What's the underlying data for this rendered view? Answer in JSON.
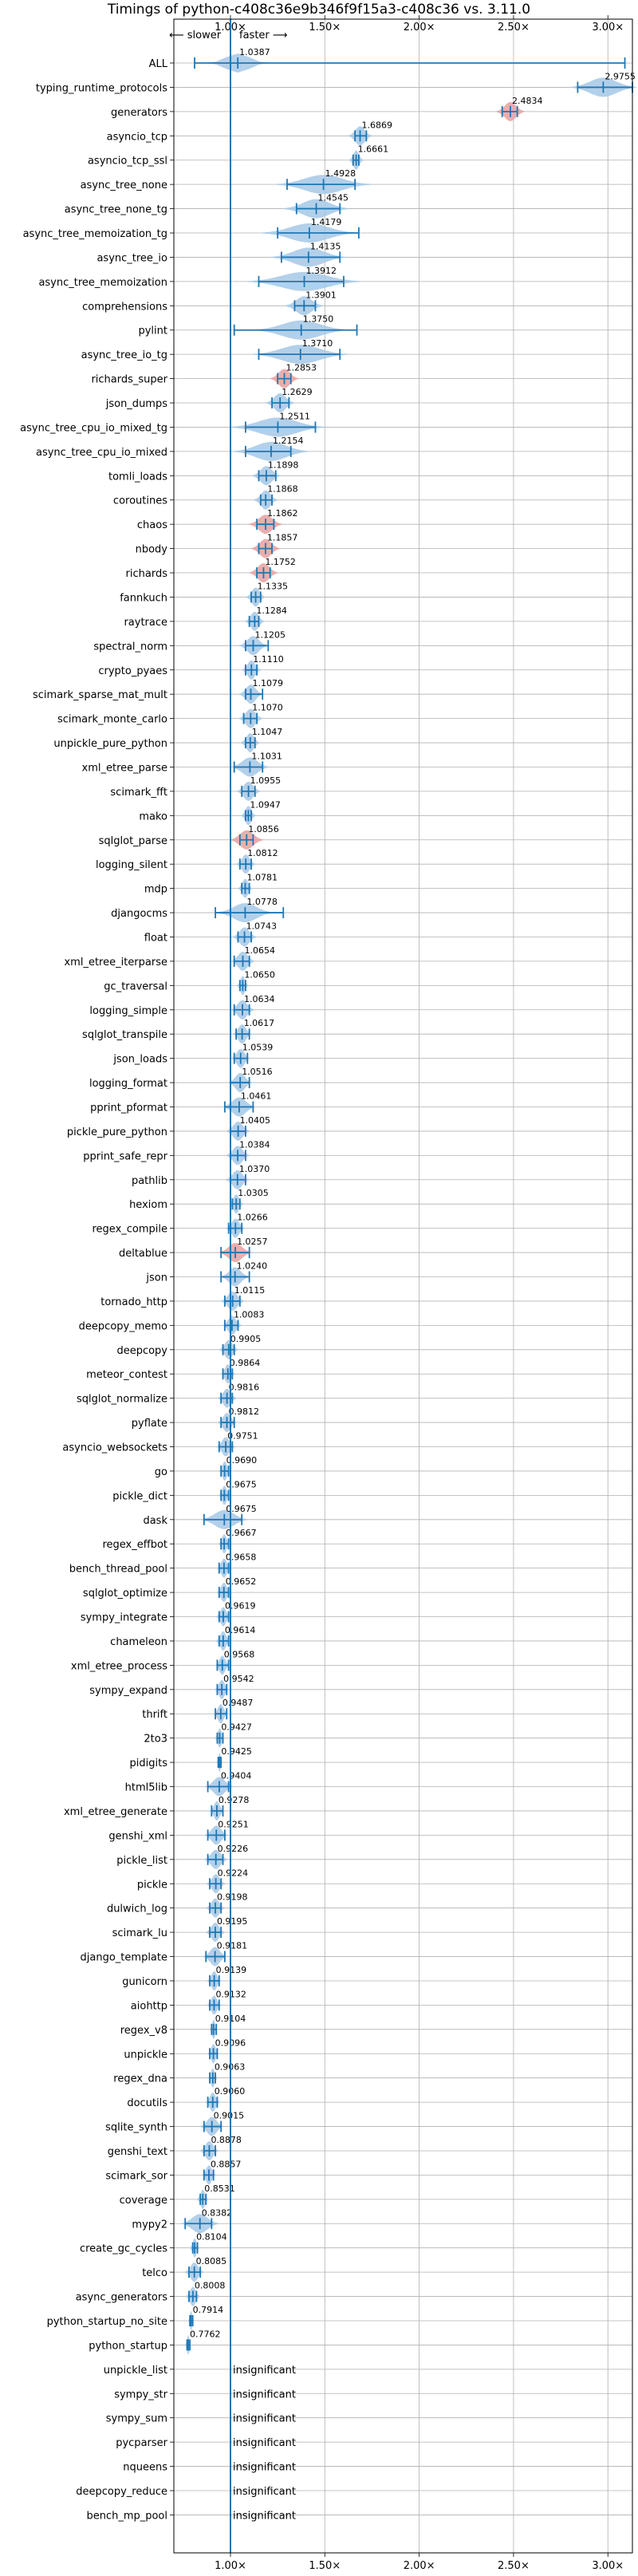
{
  "chart_data": {
    "type": "violin",
    "title": "Timings of python-c408c36e9b346f9f15a3-c408c36 vs. 3.11.0",
    "direction_labels": {
      "slower": "⟵ slower",
      "faster": "faster ⟶"
    },
    "xlim": [
      0.7,
      3.13
    ],
    "xticks": [
      1.0,
      1.5,
      2.0,
      2.5,
      3.0
    ],
    "xtick_labels": [
      "1.00×",
      "1.50×",
      "2.00×",
      "2.50×",
      "3.00×"
    ],
    "reference_line": 1.0,
    "grid": true,
    "benchmarks": [
      {
        "name": "ALL",
        "label": "1.0387",
        "value": 1.0387,
        "min": 0.81,
        "max": 3.09,
        "spread": 0.06,
        "flag": "none"
      },
      {
        "name": "typing_runtime_protocols",
        "label": "2.9755",
        "value": 2.9755,
        "min": 2.84,
        "max": 3.13,
        "spread": 0.07,
        "flag": "none"
      },
      {
        "name": "generators",
        "label": "2.4834",
        "value": 2.4834,
        "min": 2.44,
        "max": 2.52,
        "spread": 0.03,
        "flag": "red"
      },
      {
        "name": "asyncio_tcp",
        "label": "1.6869",
        "value": 1.6869,
        "min": 1.66,
        "max": 1.72,
        "spread": 0.025,
        "flag": "none"
      },
      {
        "name": "asyncio_tcp_ssl",
        "label": "1.6661",
        "value": 1.6661,
        "min": 1.65,
        "max": 1.68,
        "spread": 0.015,
        "flag": "none"
      },
      {
        "name": "async_tree_none",
        "label": "1.4928",
        "value": 1.4928,
        "min": 1.3,
        "max": 1.66,
        "spread": 0.1,
        "flag": "none"
      },
      {
        "name": "async_tree_none_tg",
        "label": "1.4545",
        "value": 1.4545,
        "min": 1.35,
        "max": 1.58,
        "spread": 0.07,
        "flag": "none"
      },
      {
        "name": "async_tree_memoization_tg",
        "label": "1.4179",
        "value": 1.4179,
        "min": 1.25,
        "max": 1.68,
        "spread": 0.1,
        "flag": "none"
      },
      {
        "name": "async_tree_io",
        "label": "1.4135",
        "value": 1.4135,
        "min": 1.27,
        "max": 1.58,
        "spread": 0.08,
        "flag": "none"
      },
      {
        "name": "async_tree_memoization",
        "label": "1.3912",
        "value": 1.3912,
        "min": 1.15,
        "max": 1.6,
        "spread": 0.12,
        "flag": "none"
      },
      {
        "name": "comprehensions",
        "label": "1.3901",
        "value": 1.3901,
        "min": 1.34,
        "max": 1.45,
        "spread": 0.04,
        "flag": "none"
      },
      {
        "name": "pylint",
        "label": "1.3750",
        "value": 1.375,
        "min": 1.02,
        "max": 1.67,
        "spread": 0.1,
        "flag": "none"
      },
      {
        "name": "async_tree_io_tg",
        "label": "1.3710",
        "value": 1.371,
        "min": 1.15,
        "max": 1.58,
        "spread": 0.1,
        "flag": "none"
      },
      {
        "name": "richards_super",
        "label": "1.2853",
        "value": 1.2853,
        "min": 1.25,
        "max": 1.32,
        "spread": 0.03,
        "flag": "red"
      },
      {
        "name": "json_dumps",
        "label": "1.2629",
        "value": 1.2629,
        "min": 1.22,
        "max": 1.31,
        "spread": 0.03,
        "flag": "none"
      },
      {
        "name": "async_tree_cpu_io_mixed_tg",
        "label": "1.2511",
        "value": 1.2511,
        "min": 1.08,
        "max": 1.45,
        "spread": 0.1,
        "flag": "none"
      },
      {
        "name": "async_tree_cpu_io_mixed",
        "label": "1.2154",
        "value": 1.2154,
        "min": 1.08,
        "max": 1.32,
        "spread": 0.08,
        "flag": "none"
      },
      {
        "name": "tomli_loads",
        "label": "1.1898",
        "value": 1.1898,
        "min": 1.15,
        "max": 1.24,
        "spread": 0.03,
        "flag": "none"
      },
      {
        "name": "coroutines",
        "label": "1.1868",
        "value": 1.1868,
        "min": 1.16,
        "max": 1.22,
        "spread": 0.025,
        "flag": "none"
      },
      {
        "name": "chaos",
        "label": "1.1862",
        "value": 1.1862,
        "min": 1.14,
        "max": 1.23,
        "spread": 0.035,
        "flag": "red"
      },
      {
        "name": "nbody",
        "label": "1.1857",
        "value": 1.1857,
        "min": 1.15,
        "max": 1.22,
        "spread": 0.03,
        "flag": "red"
      },
      {
        "name": "richards",
        "label": "1.1752",
        "value": 1.1752,
        "min": 1.14,
        "max": 1.21,
        "spread": 0.03,
        "flag": "red"
      },
      {
        "name": "fannkuch",
        "label": "1.1335",
        "value": 1.1335,
        "min": 1.11,
        "max": 1.16,
        "spread": 0.02,
        "flag": "none"
      },
      {
        "name": "raytrace",
        "label": "1.1284",
        "value": 1.1284,
        "min": 1.1,
        "max": 1.15,
        "spread": 0.02,
        "flag": "none"
      },
      {
        "name": "spectral_norm",
        "label": "1.1205",
        "value": 1.1205,
        "min": 1.08,
        "max": 1.2,
        "spread": 0.03,
        "flag": "none"
      },
      {
        "name": "crypto_pyaes",
        "label": "1.1110",
        "value": 1.111,
        "min": 1.08,
        "max": 1.14,
        "spread": 0.02,
        "flag": "none"
      },
      {
        "name": "scimark_sparse_mat_mult",
        "label": "1.1079",
        "value": 1.1079,
        "min": 1.08,
        "max": 1.17,
        "spread": 0.025,
        "flag": "none"
      },
      {
        "name": "scimark_monte_carlo",
        "label": "1.1070",
        "value": 1.107,
        "min": 1.07,
        "max": 1.14,
        "spread": 0.025,
        "flag": "none"
      },
      {
        "name": "unpickle_pure_python",
        "label": "1.1047",
        "value": 1.1047,
        "min": 1.08,
        "max": 1.13,
        "spread": 0.02,
        "flag": "none"
      },
      {
        "name": "xml_etree_parse",
        "label": "1.1031",
        "value": 1.1031,
        "min": 1.02,
        "max": 1.17,
        "spread": 0.04,
        "flag": "none"
      },
      {
        "name": "scimark_fft",
        "label": "1.0955",
        "value": 1.0955,
        "min": 1.06,
        "max": 1.13,
        "spread": 0.025,
        "flag": "none"
      },
      {
        "name": "mako",
        "label": "1.0947",
        "value": 1.0947,
        "min": 1.08,
        "max": 1.11,
        "spread": 0.015,
        "flag": "none"
      },
      {
        "name": "sqlglot_parse",
        "label": "1.0856",
        "value": 1.0856,
        "min": 1.05,
        "max": 1.12,
        "spread": 0.035,
        "flag": "red"
      },
      {
        "name": "logging_silent",
        "label": "1.0812",
        "value": 1.0812,
        "min": 1.05,
        "max": 1.11,
        "spread": 0.02,
        "flag": "none"
      },
      {
        "name": "mdp",
        "label": "1.0781",
        "value": 1.0781,
        "min": 1.06,
        "max": 1.1,
        "spread": 0.015,
        "flag": "none"
      },
      {
        "name": "djangocms",
        "label": "1.0778",
        "value": 1.0778,
        "min": 0.92,
        "max": 1.28,
        "spread": 0.06,
        "flag": "none"
      },
      {
        "name": "float",
        "label": "1.0743",
        "value": 1.0743,
        "min": 1.04,
        "max": 1.11,
        "spread": 0.025,
        "flag": "none"
      },
      {
        "name": "xml_etree_iterparse",
        "label": "1.0654",
        "value": 1.0654,
        "min": 1.02,
        "max": 1.1,
        "spread": 0.025,
        "flag": "none"
      },
      {
        "name": "gc_traversal",
        "label": "1.0650",
        "value": 1.065,
        "min": 1.05,
        "max": 1.08,
        "spread": 0.012,
        "flag": "none"
      },
      {
        "name": "logging_simple",
        "label": "1.0634",
        "value": 1.0634,
        "min": 1.02,
        "max": 1.1,
        "spread": 0.025,
        "flag": "none"
      },
      {
        "name": "sqlglot_transpile",
        "label": "1.0617",
        "value": 1.0617,
        "min": 1.03,
        "max": 1.1,
        "spread": 0.02,
        "flag": "none"
      },
      {
        "name": "json_loads",
        "label": "1.0539",
        "value": 1.0539,
        "min": 1.02,
        "max": 1.09,
        "spread": 0.02,
        "flag": "none"
      },
      {
        "name": "logging_format",
        "label": "1.0516",
        "value": 1.0516,
        "min": 1.0,
        "max": 1.1,
        "spread": 0.025,
        "flag": "none"
      },
      {
        "name": "pprint_pformat",
        "label": "1.0461",
        "value": 1.0461,
        "min": 0.97,
        "max": 1.12,
        "spread": 0.035,
        "flag": "none"
      },
      {
        "name": "pickle_pure_python",
        "label": "1.0405",
        "value": 1.0405,
        "min": 1.0,
        "max": 1.08,
        "spread": 0.025,
        "flag": "none"
      },
      {
        "name": "pprint_safe_repr",
        "label": "1.0384",
        "value": 1.0384,
        "min": 1.0,
        "max": 1.08,
        "spread": 0.025,
        "flag": "none"
      },
      {
        "name": "pathlib",
        "label": "1.0370",
        "value": 1.037,
        "min": 1.0,
        "max": 1.08,
        "spread": 0.025,
        "flag": "none"
      },
      {
        "name": "hexiom",
        "label": "1.0305",
        "value": 1.0305,
        "min": 1.01,
        "max": 1.05,
        "spread": 0.015,
        "flag": "none"
      },
      {
        "name": "regex_compile",
        "label": "1.0266",
        "value": 1.0266,
        "min": 0.99,
        "max": 1.06,
        "spread": 0.02,
        "flag": "none"
      },
      {
        "name": "deltablue",
        "label": "1.0257",
        "value": 1.0257,
        "min": 0.95,
        "max": 1.1,
        "spread": 0.035,
        "flag": "red"
      },
      {
        "name": "json",
        "label": "1.0240",
        "value": 1.024,
        "min": 0.95,
        "max": 1.1,
        "spread": 0.03,
        "flag": "none"
      },
      {
        "name": "tornado_http",
        "label": "1.0115",
        "value": 1.0115,
        "min": 0.97,
        "max": 1.05,
        "spread": 0.025,
        "flag": "none"
      },
      {
        "name": "deepcopy_memo",
        "label": "1.0083",
        "value": 1.0083,
        "min": 0.97,
        "max": 1.04,
        "spread": 0.02,
        "flag": "none"
      },
      {
        "name": "deepcopy",
        "label": "0.9905",
        "value": 0.9905,
        "min": 0.96,
        "max": 1.02,
        "spread": 0.02,
        "flag": "none"
      },
      {
        "name": "meteor_contest",
        "label": "0.9864",
        "value": 0.9864,
        "min": 0.96,
        "max": 1.01,
        "spread": 0.015,
        "flag": "none"
      },
      {
        "name": "sqlglot_normalize",
        "label": "0.9816",
        "value": 0.9816,
        "min": 0.95,
        "max": 1.01,
        "spread": 0.02,
        "flag": "none"
      },
      {
        "name": "pyflate",
        "label": "0.9812",
        "value": 0.9812,
        "min": 0.95,
        "max": 1.02,
        "spread": 0.02,
        "flag": "none"
      },
      {
        "name": "asyncio_websockets",
        "label": "0.9751",
        "value": 0.9751,
        "min": 0.94,
        "max": 1.01,
        "spread": 0.02,
        "flag": "none"
      },
      {
        "name": "go",
        "label": "0.9690",
        "value": 0.969,
        "min": 0.95,
        "max": 0.99,
        "spread": 0.012,
        "flag": "none"
      },
      {
        "name": "pickle_dict",
        "label": "0.9675",
        "value": 0.9675,
        "min": 0.95,
        "max": 0.99,
        "spread": 0.012,
        "flag": "none"
      },
      {
        "name": "dask",
        "label": "0.9675",
        "value": 0.9675,
        "min": 0.86,
        "max": 1.06,
        "spread": 0.05,
        "flag": "none"
      },
      {
        "name": "regex_effbot",
        "label": "0.9667",
        "value": 0.9667,
        "min": 0.95,
        "max": 0.99,
        "spread": 0.012,
        "flag": "none"
      },
      {
        "name": "bench_thread_pool",
        "label": "0.9658",
        "value": 0.9658,
        "min": 0.94,
        "max": 0.99,
        "spread": 0.015,
        "flag": "none"
      },
      {
        "name": "sqlglot_optimize",
        "label": "0.9652",
        "value": 0.9652,
        "min": 0.94,
        "max": 0.99,
        "spread": 0.015,
        "flag": "none"
      },
      {
        "name": "sympy_integrate",
        "label": "0.9619",
        "value": 0.9619,
        "min": 0.94,
        "max": 0.99,
        "spread": 0.015,
        "flag": "none"
      },
      {
        "name": "chameleon",
        "label": "0.9614",
        "value": 0.9614,
        "min": 0.94,
        "max": 0.99,
        "spread": 0.015,
        "flag": "none"
      },
      {
        "name": "xml_etree_process",
        "label": "0.9568",
        "value": 0.9568,
        "min": 0.93,
        "max": 0.99,
        "spread": 0.015,
        "flag": "none"
      },
      {
        "name": "sympy_expand",
        "label": "0.9542",
        "value": 0.9542,
        "min": 0.93,
        "max": 0.98,
        "spread": 0.015,
        "flag": "none"
      },
      {
        "name": "thrift",
        "label": "0.9487",
        "value": 0.9487,
        "min": 0.92,
        "max": 0.98,
        "spread": 0.015,
        "flag": "none"
      },
      {
        "name": "2to3",
        "label": "0.9427",
        "value": 0.9427,
        "min": 0.93,
        "max": 0.96,
        "spread": 0.01,
        "flag": "none"
      },
      {
        "name": "pidigits",
        "label": "0.9425",
        "value": 0.9425,
        "min": 0.935,
        "max": 0.95,
        "spread": 0.006,
        "flag": "none"
      },
      {
        "name": "html5lib",
        "label": "0.9404",
        "value": 0.9404,
        "min": 0.88,
        "max": 0.99,
        "spread": 0.03,
        "flag": "none"
      },
      {
        "name": "xml_etree_generate",
        "label": "0.9278",
        "value": 0.9278,
        "min": 0.9,
        "max": 0.96,
        "spread": 0.015,
        "flag": "none"
      },
      {
        "name": "genshi_xml",
        "label": "0.9251",
        "value": 0.9251,
        "min": 0.88,
        "max": 0.97,
        "spread": 0.025,
        "flag": "none"
      },
      {
        "name": "pickle_list",
        "label": "0.9226",
        "value": 0.9226,
        "min": 0.88,
        "max": 0.96,
        "spread": 0.025,
        "flag": "none"
      },
      {
        "name": "pickle",
        "label": "0.9224",
        "value": 0.9224,
        "min": 0.89,
        "max": 0.95,
        "spread": 0.02,
        "flag": "none"
      },
      {
        "name": "dulwich_log",
        "label": "0.9198",
        "value": 0.9198,
        "min": 0.89,
        "max": 0.95,
        "spread": 0.02,
        "flag": "none"
      },
      {
        "name": "scimark_lu",
        "label": "0.9195",
        "value": 0.9195,
        "min": 0.89,
        "max": 0.95,
        "spread": 0.02,
        "flag": "none"
      },
      {
        "name": "django_template",
        "label": "0.9181",
        "value": 0.9181,
        "min": 0.87,
        "max": 0.97,
        "spread": 0.025,
        "flag": "none"
      },
      {
        "name": "gunicorn",
        "label": "0.9139",
        "value": 0.9139,
        "min": 0.89,
        "max": 0.94,
        "spread": 0.015,
        "flag": "none"
      },
      {
        "name": "aiohttp",
        "label": "0.9132",
        "value": 0.9132,
        "min": 0.89,
        "max": 0.94,
        "spread": 0.015,
        "flag": "none"
      },
      {
        "name": "regex_v8",
        "label": "0.9104",
        "value": 0.9104,
        "min": 0.9,
        "max": 0.925,
        "spread": 0.008,
        "flag": "none"
      },
      {
        "name": "unpickle",
        "label": "0.9096",
        "value": 0.9096,
        "min": 0.89,
        "max": 0.93,
        "spread": 0.012,
        "flag": "none"
      },
      {
        "name": "regex_dna",
        "label": "0.9063",
        "value": 0.9063,
        "min": 0.89,
        "max": 0.92,
        "spread": 0.01,
        "flag": "none"
      },
      {
        "name": "docutils",
        "label": "0.9060",
        "value": 0.906,
        "min": 0.88,
        "max": 0.93,
        "spread": 0.015,
        "flag": "none"
      },
      {
        "name": "sqlite_synth",
        "label": "0.9015",
        "value": 0.9015,
        "min": 0.86,
        "max": 0.95,
        "spread": 0.025,
        "flag": "none"
      },
      {
        "name": "genshi_text",
        "label": "0.8878",
        "value": 0.8878,
        "min": 0.86,
        "max": 0.92,
        "spread": 0.02,
        "flag": "none"
      },
      {
        "name": "scimark_sor",
        "label": "0.8857",
        "value": 0.8857,
        "min": 0.86,
        "max": 0.91,
        "spread": 0.015,
        "flag": "none"
      },
      {
        "name": "coverage",
        "label": "0.8531",
        "value": 0.8531,
        "min": 0.84,
        "max": 0.87,
        "spread": 0.012,
        "flag": "none"
      },
      {
        "name": "mypy2",
        "label": "0.8382",
        "value": 0.8382,
        "min": 0.76,
        "max": 0.9,
        "spread": 0.04,
        "flag": "none"
      },
      {
        "name": "create_gc_cycles",
        "label": "0.8104",
        "value": 0.8104,
        "min": 0.8,
        "max": 0.825,
        "spread": 0.01,
        "flag": "none"
      },
      {
        "name": "telco",
        "label": "0.8085",
        "value": 0.8085,
        "min": 0.78,
        "max": 0.84,
        "spread": 0.02,
        "flag": "none"
      },
      {
        "name": "async_generators",
        "label": "0.8008",
        "value": 0.8008,
        "min": 0.78,
        "max": 0.82,
        "spread": 0.015,
        "flag": "none"
      },
      {
        "name": "python_startup_no_site",
        "label": "0.7914",
        "value": 0.7914,
        "min": 0.785,
        "max": 0.8,
        "spread": 0.006,
        "flag": "none"
      },
      {
        "name": "python_startup",
        "label": "0.7762",
        "value": 0.7762,
        "min": 0.77,
        "max": 0.785,
        "spread": 0.006,
        "flag": "none"
      },
      {
        "name": "unpickle_list",
        "label": "insignificant",
        "value": null,
        "flag": "insignificant"
      },
      {
        "name": "sympy_str",
        "label": "insignificant",
        "value": null,
        "flag": "insignificant"
      },
      {
        "name": "sympy_sum",
        "label": "insignificant",
        "value": null,
        "flag": "insignificant"
      },
      {
        "name": "pycparser",
        "label": "insignificant",
        "value": null,
        "flag": "insignificant"
      },
      {
        "name": "nqueens",
        "label": "insignificant",
        "value": null,
        "flag": "insignificant"
      },
      {
        "name": "deepcopy_reduce",
        "label": "insignificant",
        "value": null,
        "flag": "insignificant"
      },
      {
        "name": "bench_mp_pool",
        "label": "insignificant",
        "value": null,
        "flag": "insignificant"
      }
    ]
  },
  "colors": {
    "violin_fill": "#a6c8e6",
    "whisker": "#1f77b4",
    "reference_line": "#1f77b4",
    "grid": "#b0b0b0",
    "flag_red": "#e8a0a0",
    "text": "#000000"
  }
}
